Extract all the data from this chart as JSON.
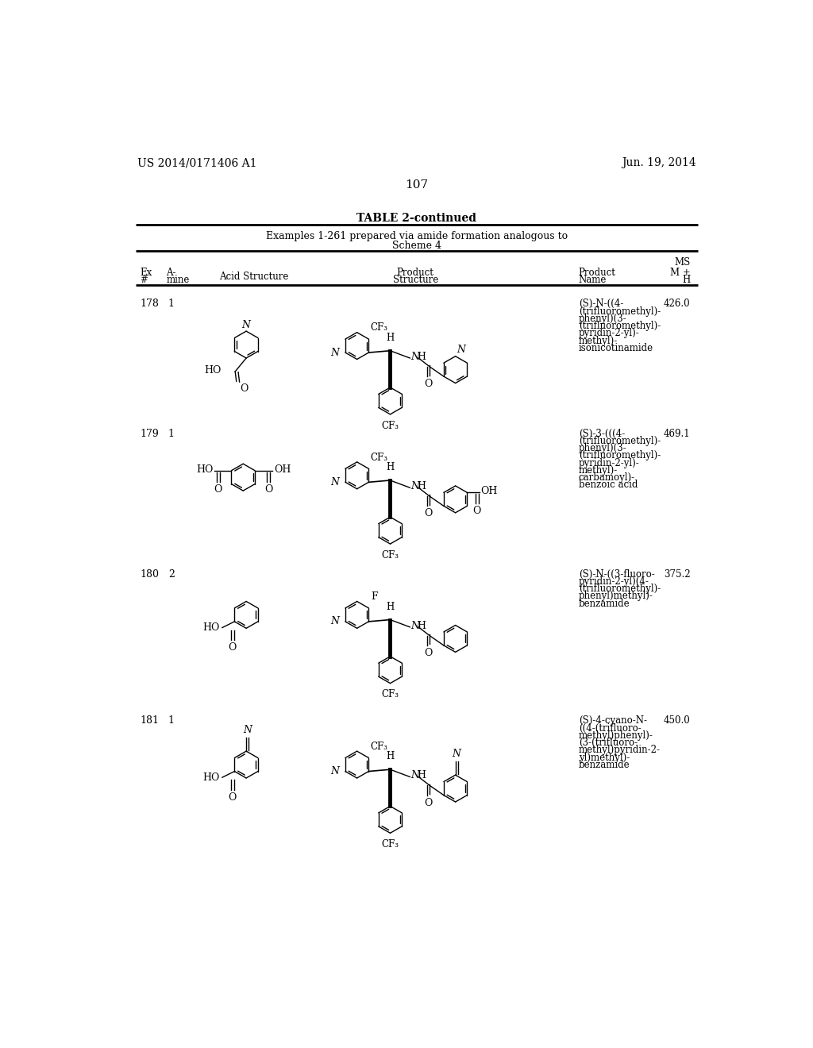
{
  "page_number": "107",
  "patent_number": "US 2014/0171406 A1",
  "patent_date": "Jun. 19, 2014",
  "table_title": "TABLE 2-continued",
  "table_subtitle1": "Examples 1-261 prepared via amide formation analogous to",
  "table_subtitle2": "Scheme 4",
  "rows": [
    {
      "ex": "178",
      "amine": "1",
      "name_lines": [
        "(S)-N-((4-",
        "(trifluoromethyl)-",
        "phenyl)(3-",
        "(trifluoromethyl)-",
        "pyridin-2-yl)-",
        "methyl)-",
        "isonicotinamide"
      ],
      "ms": "426.0"
    },
    {
      "ex": "179",
      "amine": "1",
      "name_lines": [
        "(S)-3-(((4-",
        "(trifluoromethyl)-",
        "phenyl)(3-",
        "(trifluoromethyl)-",
        "pyridin-2-yl)-",
        "methyl)-",
        "carbamoyl)-",
        "benzoic acid"
      ],
      "ms": "469.1"
    },
    {
      "ex": "180",
      "amine": "2",
      "name_lines": [
        "(S)-N-((3-fluoro-",
        "pyridin-2-yl)(4-",
        "(trifluoromethyl)-",
        "phenyl)methyl)-",
        "benzamide"
      ],
      "ms": "375.2"
    },
    {
      "ex": "181",
      "amine": "1",
      "name_lines": [
        "(S)-4-cyano-N-",
        "((4-(trifluoro-",
        "methyl)phenyl)-",
        "(3-(trifluoro-",
        "methyl)pyridin-2-",
        "yl)methyl)-",
        "benzamide"
      ],
      "ms": "450.0"
    }
  ],
  "background_color": "#ffffff"
}
